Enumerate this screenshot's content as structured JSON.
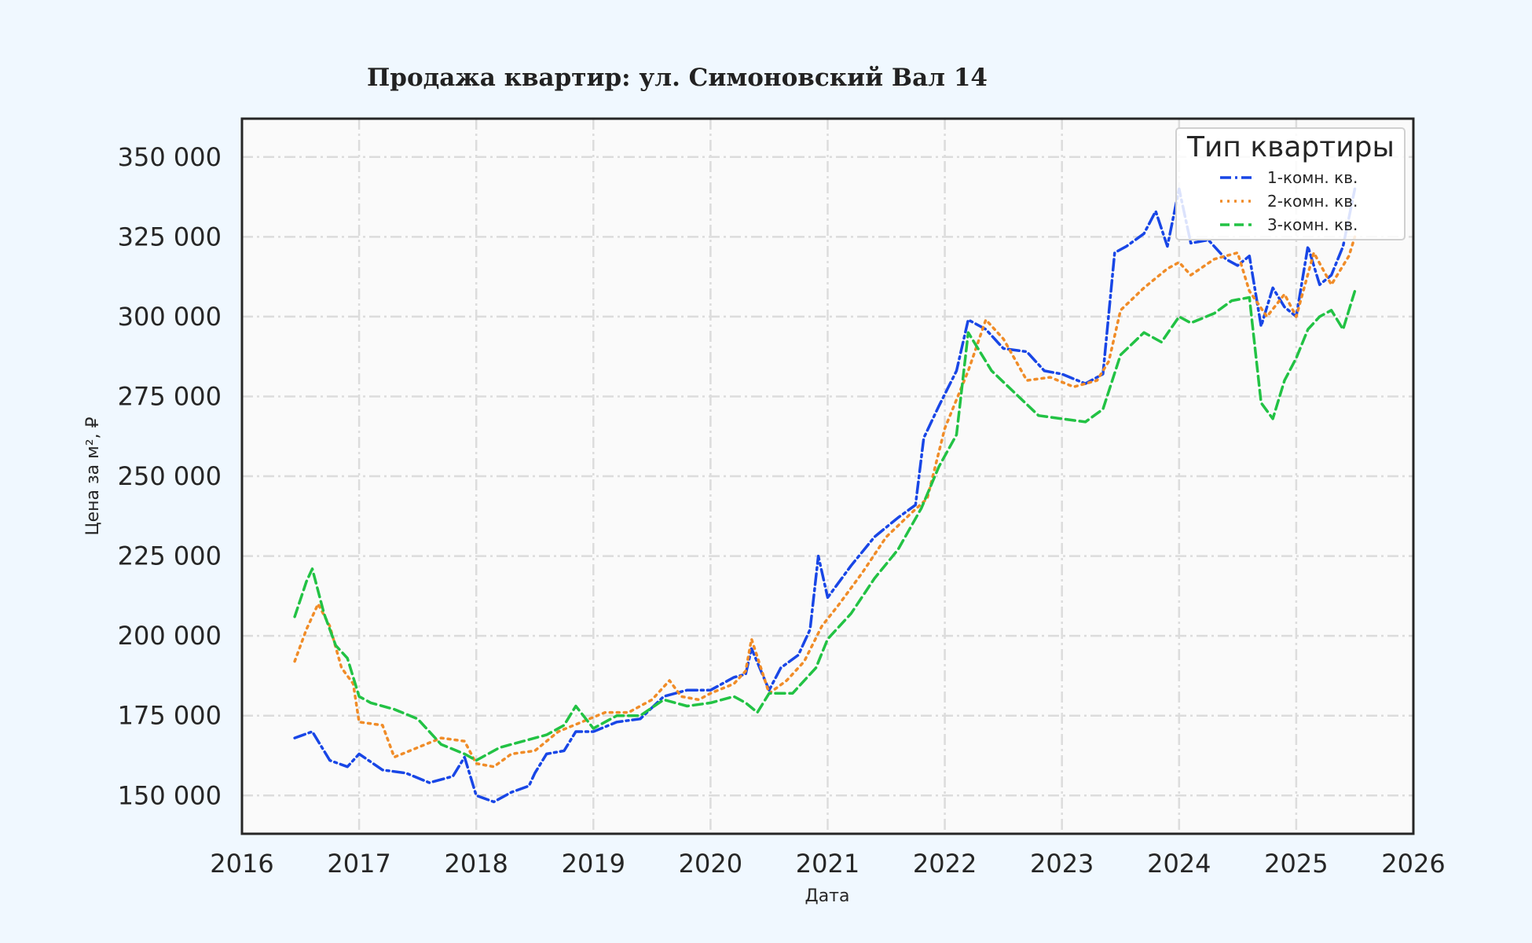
{
  "chart_data": {
    "type": "line",
    "title": "Продажа квартир: ул. Симоновский Вал 14",
    "xlabel": "Дата",
    "ylabel": "Цена за м², ₽",
    "xlim": [
      2016.0,
      2026.0
    ],
    "ylim": [
      138000,
      362000
    ],
    "x_ticks": [
      2016,
      2017,
      2018,
      2019,
      2020,
      2021,
      2022,
      2023,
      2024,
      2025,
      2026
    ],
    "x_tick_labels": [
      "2016",
      "2017",
      "2018",
      "2019",
      "2020",
      "2021",
      "2022",
      "2023",
      "2024",
      "2025",
      "2026"
    ],
    "y_ticks": [
      150000,
      175000,
      200000,
      225000,
      250000,
      275000,
      300000,
      325000,
      350000
    ],
    "y_tick_labels": [
      "150 000",
      "175 000",
      "200 000",
      "225 000",
      "250 000",
      "275 000",
      "300 000",
      "325 000",
      "350 000"
    ],
    "grid": true,
    "legend": {
      "title": "Тип квартиры",
      "position": "top-right"
    },
    "series": [
      {
        "name": "1-комн. кв.",
        "color": "#1846e6",
        "style": "dashdot",
        "x": [
          2016.45,
          2016.6,
          2016.75,
          2016.9,
          2017.0,
          2017.2,
          2017.4,
          2017.6,
          2017.8,
          2017.9,
          2018.0,
          2018.15,
          2018.3,
          2018.45,
          2018.5,
          2018.6,
          2018.75,
          2018.85,
          2019.0,
          2019.2,
          2019.4,
          2019.6,
          2019.8,
          2020.0,
          2020.2,
          2020.3,
          2020.35,
          2020.5,
          2020.6,
          2020.75,
          2020.85,
          2020.92,
          2021.0,
          2021.2,
          2021.4,
          2021.6,
          2021.75,
          2021.82,
          2021.95,
          2022.1,
          2022.2,
          2022.35,
          2022.5,
          2022.7,
          2022.85,
          2023.0,
          2023.2,
          2023.35,
          2023.45,
          2023.55,
          2023.7,
          2023.8,
          2023.9,
          2024.0,
          2024.1,
          2024.25,
          2024.4,
          2024.5,
          2024.6,
          2024.7,
          2024.8,
          2024.9,
          2025.0,
          2025.1,
          2025.2,
          2025.3,
          2025.4,
          2025.5
        ],
        "y": [
          168000,
          170000,
          161000,
          159000,
          163000,
          158000,
          157000,
          154000,
          156000,
          162000,
          150000,
          148000,
          151000,
          153000,
          157000,
          163000,
          164000,
          170000,
          170000,
          173000,
          174000,
          181000,
          183000,
          183000,
          187000,
          188000,
          196000,
          183000,
          190000,
          194000,
          202000,
          225000,
          212000,
          222000,
          231000,
          237000,
          241000,
          262000,
          272000,
          283000,
          299000,
          296000,
          290000,
          289000,
          283000,
          282000,
          279000,
          282000,
          320000,
          322000,
          326000,
          333000,
          322000,
          340000,
          323000,
          324000,
          318000,
          316000,
          319000,
          297000,
          309000,
          303000,
          300000,
          322000,
          310000,
          313000,
          322000,
          340000
        ]
      },
      {
        "name": "2-комн. кв.",
        "color": "#f08c28",
        "style": "dotted",
        "x": [
          2016.45,
          2016.55,
          2016.65,
          2016.75,
          2016.85,
          2016.95,
          2017.0,
          2017.2,
          2017.3,
          2017.5,
          2017.7,
          2017.9,
          2018.0,
          2018.15,
          2018.3,
          2018.5,
          2018.7,
          2018.9,
          2019.1,
          2019.3,
          2019.5,
          2019.65,
          2019.75,
          2019.9,
          2020.0,
          2020.2,
          2020.3,
          2020.35,
          2020.5,
          2020.65,
          2020.8,
          2020.95,
          2021.1,
          2021.3,
          2021.5,
          2021.7,
          2021.85,
          2022.0,
          2022.2,
          2022.35,
          2022.5,
          2022.7,
          2022.9,
          2023.1,
          2023.3,
          2023.4,
          2023.5,
          2023.7,
          2023.9,
          2024.0,
          2024.1,
          2024.3,
          2024.5,
          2024.6,
          2024.75,
          2024.9,
          2025.0,
          2025.15,
          2025.3,
          2025.45,
          2025.5
        ],
        "y": [
          192000,
          202000,
          210000,
          203000,
          190000,
          185000,
          173000,
          172000,
          162000,
          165000,
          168000,
          167000,
          160000,
          159000,
          163000,
          164000,
          170000,
          173000,
          176000,
          176000,
          180000,
          186000,
          181000,
          180000,
          182000,
          185000,
          189000,
          199000,
          182000,
          186000,
          192000,
          203000,
          210000,
          220000,
          231000,
          238000,
          243000,
          265000,
          283000,
          299000,
          293000,
          280000,
          281000,
          278000,
          280000,
          286000,
          302000,
          309000,
          315000,
          317000,
          313000,
          318000,
          320000,
          308000,
          300000,
          307000,
          300000,
          320000,
          310000,
          319000,
          325000
        ]
      },
      {
        "name": "3-комн. кв.",
        "color": "#22c244",
        "style": "dashed",
        "x": [
          2016.45,
          2016.55,
          2016.6,
          2016.7,
          2016.8,
          2016.9,
          2017.0,
          2017.1,
          2017.3,
          2017.5,
          2017.7,
          2017.9,
          2018.0,
          2018.2,
          2018.4,
          2018.6,
          2018.75,
          2018.85,
          2019.0,
          2019.2,
          2019.4,
          2019.6,
          2019.8,
          2020.0,
          2020.2,
          2020.3,
          2020.4,
          2020.5,
          2020.7,
          2020.9,
          2021.0,
          2021.2,
          2021.4,
          2021.6,
          2021.8,
          2021.95,
          2022.1,
          2022.2,
          2022.4,
          2022.6,
          2022.8,
          2023.0,
          2023.2,
          2023.35,
          2023.5,
          2023.7,
          2023.85,
          2024.0,
          2024.1,
          2024.3,
          2024.45,
          2024.6,
          2024.7,
          2024.8,
          2024.9,
          2025.0,
          2025.1,
          2025.2,
          2025.3,
          2025.4,
          2025.5
        ],
        "y": [
          206000,
          217000,
          221000,
          207000,
          197000,
          193000,
          181000,
          179000,
          177000,
          174000,
          166000,
          163000,
          161000,
          165000,
          167000,
          169000,
          172000,
          178000,
          171000,
          175000,
          175000,
          180000,
          178000,
          179000,
          181000,
          179000,
          176000,
          182000,
          182000,
          190000,
          199000,
          207000,
          218000,
          227000,
          240000,
          253000,
          263000,
          295000,
          283000,
          276000,
          269000,
          268000,
          267000,
          271000,
          288000,
          295000,
          292000,
          300000,
          298000,
          301000,
          305000,
          306000,
          273000,
          268000,
          280000,
          287000,
          296000,
          300000,
          302000,
          296000,
          308000
        ]
      }
    ]
  }
}
